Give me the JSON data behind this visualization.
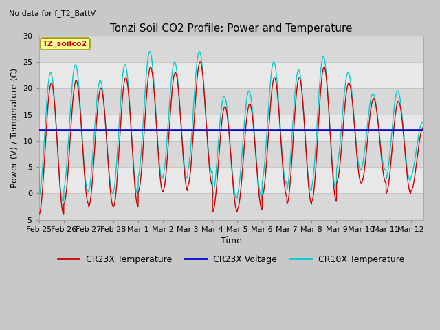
{
  "title": "Tonzi Soil CO2 Profile: Power and Temperature",
  "subtitle": "No data for f_T2_BattV",
  "xlabel": "Time",
  "ylabel": "Power (V) / Temperature (C)",
  "ylim": [
    -5,
    30
  ],
  "yticks": [
    -5,
    0,
    5,
    10,
    15,
    20,
    25,
    30
  ],
  "xlim_days": [
    0,
    15.5
  ],
  "x_tick_labels": [
    "Feb 25",
    "Feb 26",
    "Feb 27",
    "Feb 28",
    "Mar 1",
    "Mar 2",
    "Mar 3",
    "Mar 4",
    "Mar 5",
    "Mar 6",
    "Mar 7",
    "Mar 8",
    "Mar 9",
    "Mar 10",
    "Mar 11",
    "Mar 12"
  ],
  "x_tick_positions": [
    0,
    1,
    2,
    3,
    4,
    5,
    6,
    7,
    8,
    9,
    10,
    11,
    12,
    13,
    14,
    15
  ],
  "voltage_value": 12.0,
  "cr23x_color": "#cc0000",
  "cr10x_color": "#00cccc",
  "voltage_color": "#0000cc",
  "band_light": "#e8e8e8",
  "band_dark": "#d8d8d8",
  "fig_bg_color": "#c8c8c8",
  "legend_box_color": "#ffff99",
  "legend_box_edge": "#999900",
  "legend_text_color": "#cc0000",
  "title_fontsize": 11,
  "axis_fontsize": 9,
  "tick_fontsize": 8,
  "legend_fontsize": 9,
  "cr23x_peaks": [
    21,
    21.5,
    20,
    22,
    24,
    23,
    25,
    16.5,
    17,
    22,
    22,
    24,
    21,
    18,
    17.5,
    12.5
  ],
  "cr23x_troughs": [
    -4,
    -2,
    -2.5,
    -2.5,
    0.3,
    0.5,
    1.5,
    -3.5,
    -3,
    -0.5,
    -2,
    -1.5,
    2,
    2,
    0,
    0.5
  ],
  "cr10x_boost": [
    2,
    3,
    1.5,
    2.5,
    3,
    2,
    2,
    2,
    2.5,
    3,
    1.5,
    2,
    2,
    1,
    2,
    1
  ]
}
